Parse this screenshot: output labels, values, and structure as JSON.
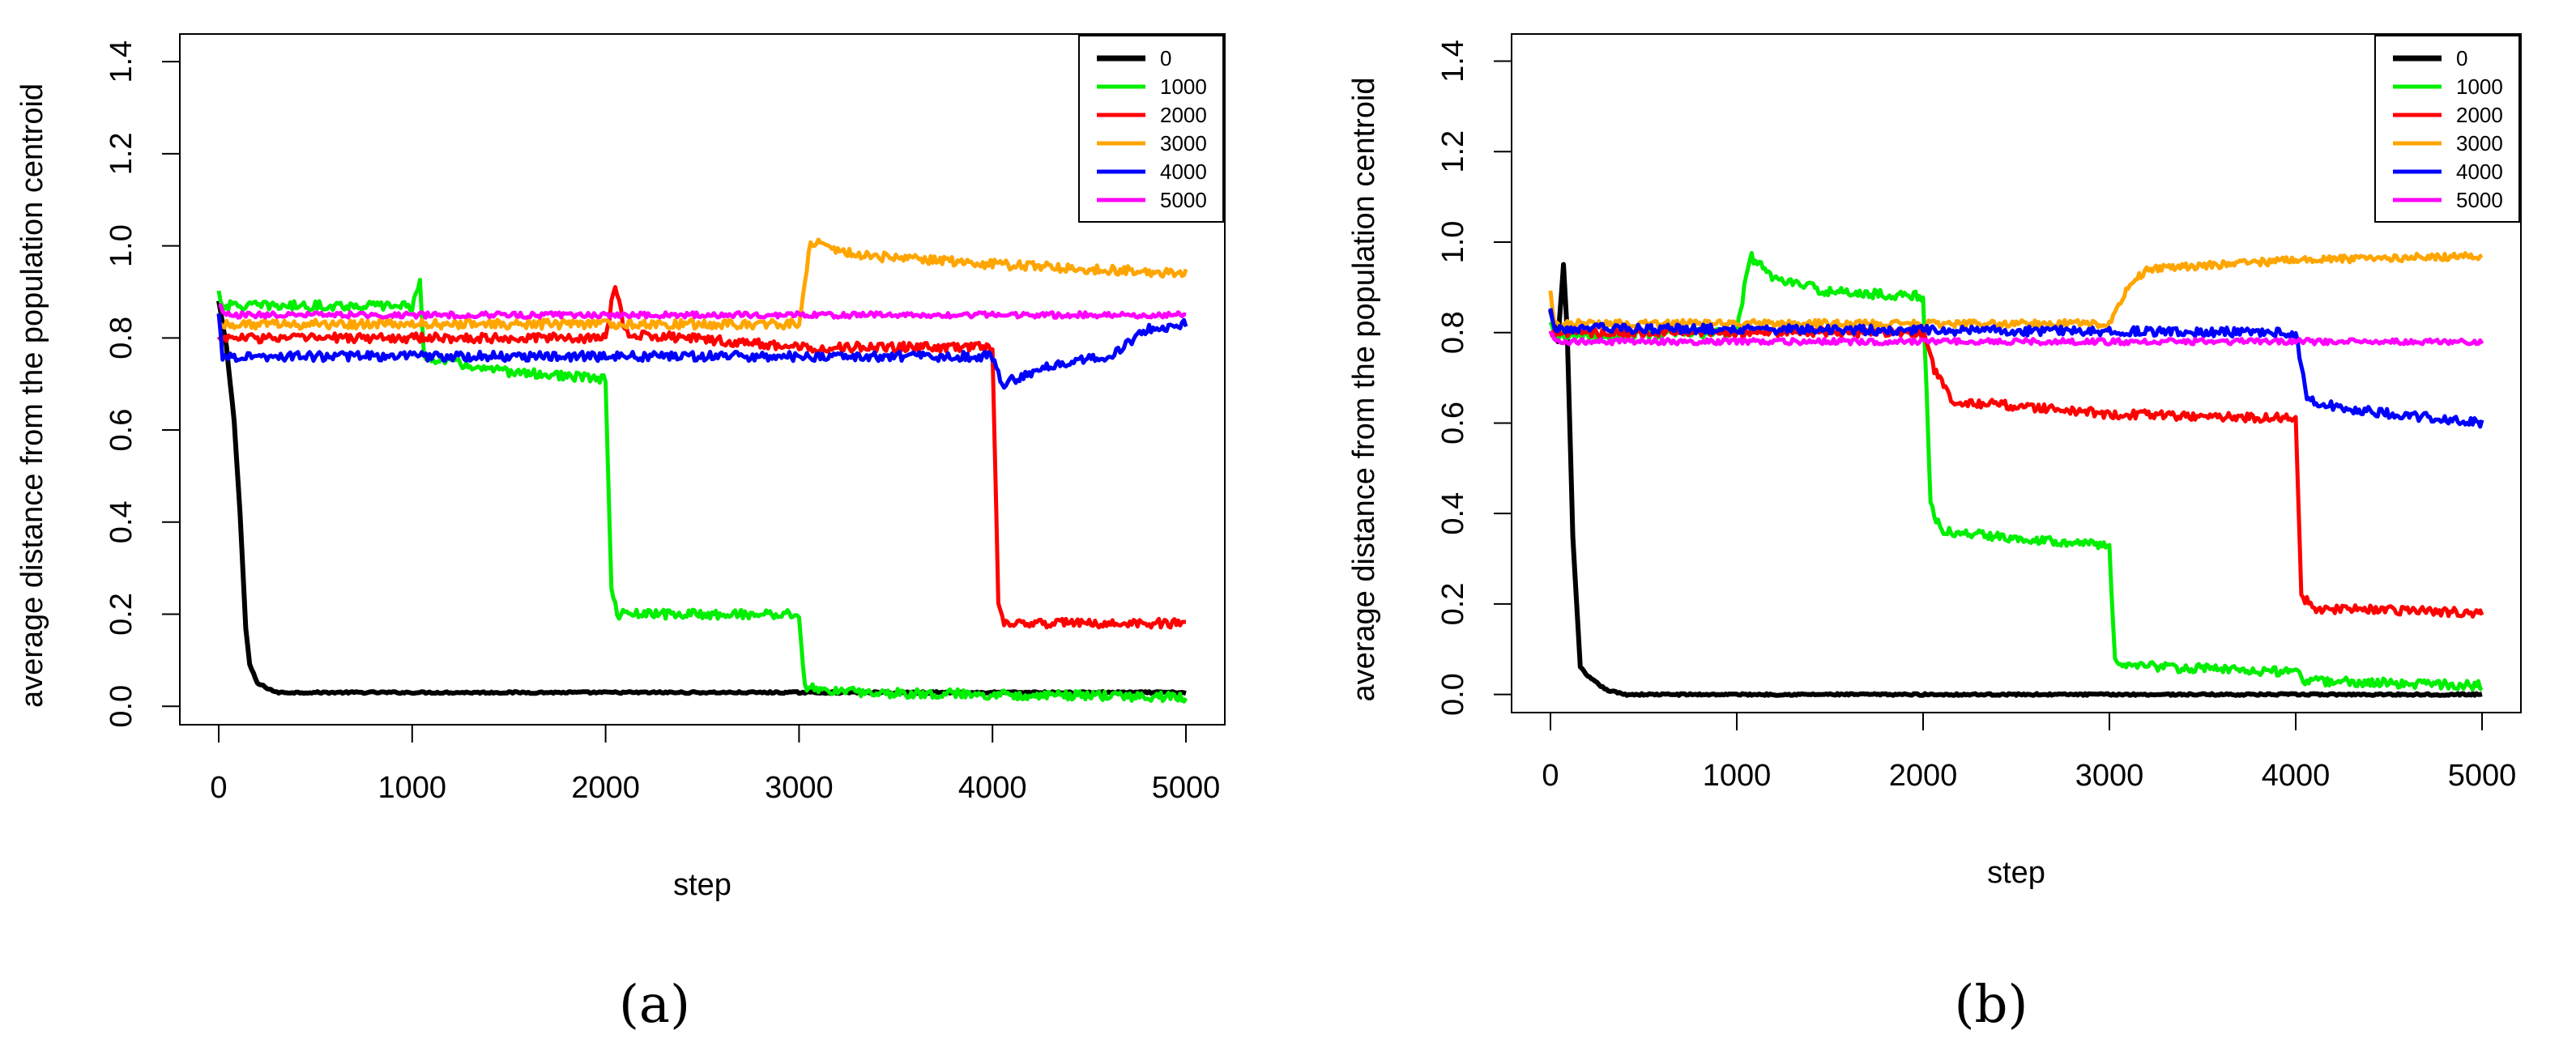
{
  "chart_data": [
    {
      "type": "line",
      "panel": "(a)",
      "xlabel": "step",
      "ylabel": "average distance from the population centroid",
      "xlim": [
        0,
        5000
      ],
      "ylim": [
        0,
        1.4
      ],
      "xticks": [
        0,
        1000,
        2000,
        3000,
        4000,
        5000
      ],
      "yticks": [
        0.0,
        0.2,
        0.4,
        0.6,
        0.8,
        1.0,
        1.2,
        1.4
      ],
      "ytick_labels": [
        "0.0",
        "0.2",
        "0.4",
        "0.6",
        "0.8",
        "1.0",
        "1.2",
        "1.4"
      ],
      "legend_title": "",
      "legend_position": "top-right",
      "series": [
        {
          "name": "0",
          "color": "#000000",
          "noise": 0.002,
          "points": [
            [
              0,
              0.88
            ],
            [
              40,
              0.78
            ],
            [
              80,
              0.62
            ],
            [
              110,
              0.42
            ],
            [
              140,
              0.17
            ],
            [
              160,
              0.09
            ],
            [
              200,
              0.05
            ],
            [
              300,
              0.03
            ],
            [
              5000,
              0.03
            ]
          ]
        },
        {
          "name": "1000",
          "color": "#00ee00",
          "noise": 0.01,
          "points": [
            [
              0,
              0.9
            ],
            [
              20,
              0.87
            ],
            [
              1000,
              0.87
            ],
            [
              1040,
              0.92
            ],
            [
              1060,
              0.76
            ],
            [
              1400,
              0.73
            ],
            [
              2000,
              0.71
            ],
            [
              2030,
              0.25
            ],
            [
              2060,
              0.2
            ],
            [
              3000,
              0.2
            ],
            [
              3030,
              0.04
            ],
            [
              3300,
              0.03
            ],
            [
              5000,
              0.02
            ]
          ]
        },
        {
          "name": "2000",
          "color": "#ff0000",
          "noise": 0.01,
          "points": [
            [
              0,
              0.8
            ],
            [
              2000,
              0.8
            ],
            [
              2050,
              0.92
            ],
            [
              2100,
              0.81
            ],
            [
              2400,
              0.8
            ],
            [
              3000,
              0.78
            ],
            [
              4000,
              0.78
            ],
            [
              4030,
              0.22
            ],
            [
              4060,
              0.18
            ],
            [
              5000,
              0.18
            ]
          ]
        },
        {
          "name": "3000",
          "color": "#ffa500",
          "noise": 0.01,
          "points": [
            [
              0,
              0.83
            ],
            [
              3000,
              0.83
            ],
            [
              3060,
              1.01
            ],
            [
              3300,
              0.98
            ],
            [
              4000,
              0.96
            ],
            [
              5000,
              0.94
            ]
          ]
        },
        {
          "name": "4000",
          "color": "#0000ff",
          "noise": 0.01,
          "points": [
            [
              0,
              0.85
            ],
            [
              20,
              0.76
            ],
            [
              4000,
              0.76
            ],
            [
              4050,
              0.7
            ],
            [
              4300,
              0.74
            ],
            [
              4600,
              0.76
            ],
            [
              4800,
              0.82
            ],
            [
              5000,
              0.83
            ]
          ]
        },
        {
          "name": "5000",
          "color": "#ff00ff",
          "noise": 0.006,
          "points": [
            [
              0,
              0.87
            ],
            [
              50,
              0.85
            ],
            [
              5000,
              0.85
            ]
          ]
        }
      ]
    },
    {
      "type": "line",
      "panel": "(b)",
      "xlabel": "step",
      "ylabel": "average distance from the population centroid",
      "xlim": [
        0,
        5000
      ],
      "ylim": [
        0,
        1.4
      ],
      "xticks": [
        0,
        1000,
        2000,
        3000,
        4000,
        5000
      ],
      "yticks": [
        0.0,
        0.2,
        0.4,
        0.6,
        0.8,
        1.0,
        1.2,
        1.4
      ],
      "ytick_labels": [
        "0.0",
        "0.2",
        "0.4",
        "0.6",
        "0.8",
        "1.0",
        "1.2",
        "1.4"
      ],
      "legend_position": "top-right",
      "series": [
        {
          "name": "0",
          "color": "#000000",
          "noise": 0.002,
          "points": [
            [
              0,
              0.85
            ],
            [
              40,
              0.78
            ],
            [
              70,
              0.95
            ],
            [
              90,
              0.8
            ],
            [
              120,
              0.35
            ],
            [
              160,
              0.06
            ],
            [
              200,
              0.04
            ],
            [
              300,
              0.01
            ],
            [
              400,
              0.0
            ],
            [
              5000,
              0.0
            ]
          ]
        },
        {
          "name": "1000",
          "color": "#00ee00",
          "noise": 0.01,
          "points": [
            [
              0,
              0.82
            ],
            [
              20,
              0.79
            ],
            [
              1000,
              0.8
            ],
            [
              1070,
              0.97
            ],
            [
              1200,
              0.92
            ],
            [
              1500,
              0.89
            ],
            [
              2000,
              0.88
            ],
            [
              2040,
              0.42
            ],
            [
              2100,
              0.36
            ],
            [
              3000,
              0.33
            ],
            [
              3030,
              0.07
            ],
            [
              3300,
              0.06
            ],
            [
              4000,
              0.05
            ],
            [
              4050,
              0.03
            ],
            [
              5000,
              0.02
            ]
          ]
        },
        {
          "name": "2000",
          "color": "#ff0000",
          "noise": 0.01,
          "points": [
            [
              0,
              0.8
            ],
            [
              2000,
              0.8
            ],
            [
              2060,
              0.72
            ],
            [
              2150,
              0.65
            ],
            [
              3000,
              0.62
            ],
            [
              4000,
              0.61
            ],
            [
              4030,
              0.22
            ],
            [
              4100,
              0.19
            ],
            [
              5000,
              0.18
            ]
          ]
        },
        {
          "name": "3000",
          "color": "#ffa500",
          "noise": 0.008,
          "points": [
            [
              0,
              0.89
            ],
            [
              20,
              0.82
            ],
            [
              3000,
              0.82
            ],
            [
              3100,
              0.9
            ],
            [
              3200,
              0.94
            ],
            [
              4000,
              0.96
            ],
            [
              5000,
              0.97
            ]
          ]
        },
        {
          "name": "4000",
          "color": "#0000ff",
          "noise": 0.01,
          "points": [
            [
              0,
              0.85
            ],
            [
              20,
              0.81
            ],
            [
              4000,
              0.8
            ],
            [
              4060,
              0.65
            ],
            [
              4300,
              0.63
            ],
            [
              5000,
              0.6
            ]
          ]
        },
        {
          "name": "5000",
          "color": "#ff00ff",
          "noise": 0.006,
          "points": [
            [
              0,
              0.8
            ],
            [
              30,
              0.78
            ],
            [
              5000,
              0.78
            ]
          ]
        }
      ]
    }
  ]
}
